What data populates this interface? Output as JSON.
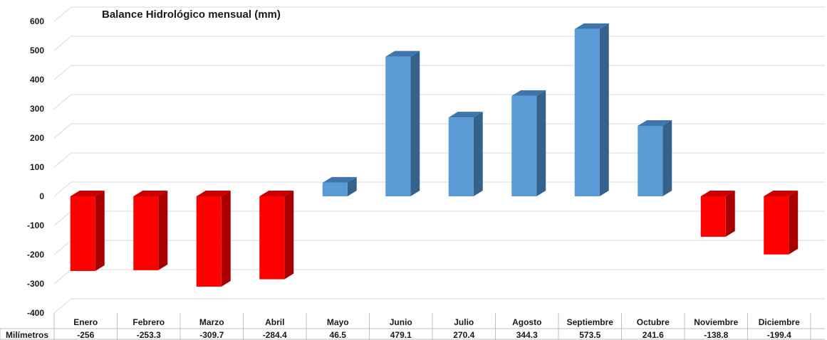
{
  "chart_data": {
    "type": "bar",
    "title": "Balance Hidrológico mensual (mm)",
    "categories": [
      "Enero",
      "Febrero",
      "Marzo",
      "Abril",
      "Mayo",
      "Junio",
      "Julio",
      "Agosto",
      "Septiembre",
      "Octubre",
      "Noviembre",
      "Diciembre"
    ],
    "series": [
      {
        "name": "Milímetros",
        "values": [
          -256,
          -253.3,
          -309.7,
          -284.4,
          46.5,
          479.1,
          270.4,
          344.3,
          573.5,
          241.6,
          -138.8,
          -199.4
        ]
      }
    ],
    "value_labels": [
      "-256",
      "-253.3",
      "-309.7",
      "-284.4",
      "46.5",
      "479.1",
      "270.4",
      "344.3",
      "573.5",
      "241.6",
      "-138.8",
      "-199.4"
    ],
    "yticks": [
      600,
      500,
      400,
      300,
      200,
      100,
      0,
      -100,
      -200,
      -300,
      -400
    ],
    "ytick_labels": [
      "600",
      "500",
      "400",
      "300",
      "200",
      "100",
      "0",
      "-100",
      "-200",
      "-300",
      "-400"
    ],
    "ylim": [
      -400,
      600
    ],
    "grid": true,
    "data_table": true,
    "style": "3d-column",
    "colors": {
      "positive_front": "#5b9bd5",
      "positive_top": "#3e76ab",
      "positive_side": "#34628d",
      "negative_front": "#ff0000",
      "negative_top": "#cc0000",
      "negative_side": "#a80000",
      "grid": "#d9d9d9",
      "table_line": "#bfbfbf"
    }
  }
}
